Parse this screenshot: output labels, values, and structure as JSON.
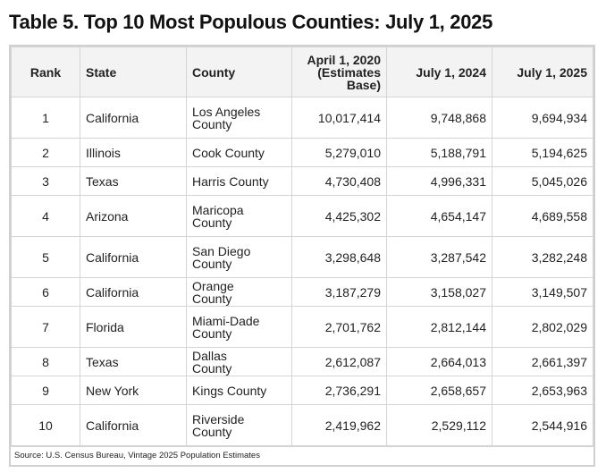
{
  "title": "Table 5. Top 10 Most Populous Counties: July 1, 2025",
  "table": {
    "header": [
      "Rank",
      "State",
      "County",
      "April 1, 2020 (Estimates Base)",
      "July 1, 2024",
      "July 1, 2025"
    ],
    "rows": [
      [
        "1",
        "California",
        "Los Angeles County",
        "10,017,414",
        "9,748,868",
        "9,694,934"
      ],
      [
        "2",
        "Illinois",
        "Cook County",
        "5,279,010",
        "5,188,791",
        "5,194,625"
      ],
      [
        "3",
        "Texas",
        "Harris County",
        "4,730,408",
        "4,996,331",
        "5,045,026"
      ],
      [
        "4",
        "Arizona",
        "Maricopa County",
        "4,425,302",
        "4,654,147",
        "4,689,558"
      ],
      [
        "5",
        "California",
        "San Diego County",
        "3,298,648",
        "3,287,542",
        "3,282,248"
      ],
      [
        "6",
        "California",
        "Orange County",
        "3,187,279",
        "3,158,027",
        "3,149,507"
      ],
      [
        "7",
        "Florida",
        "Miami-Dade County",
        "2,701,762",
        "2,812,144",
        "2,802,029"
      ],
      [
        "8",
        "Texas",
        "Dallas County",
        "2,612,087",
        "2,664,013",
        "2,661,397"
      ],
      [
        "9",
        "New York",
        "Kings County",
        "2,736,291",
        "2,658,657",
        "2,653,963"
      ],
      [
        "10",
        "California",
        "Riverside County",
        "2,419,962",
        "2,529,112",
        "2,544,916"
      ]
    ]
  },
  "source": "Source: U.S. Census Bureau, Vintage 2025 Population Estimates"
}
